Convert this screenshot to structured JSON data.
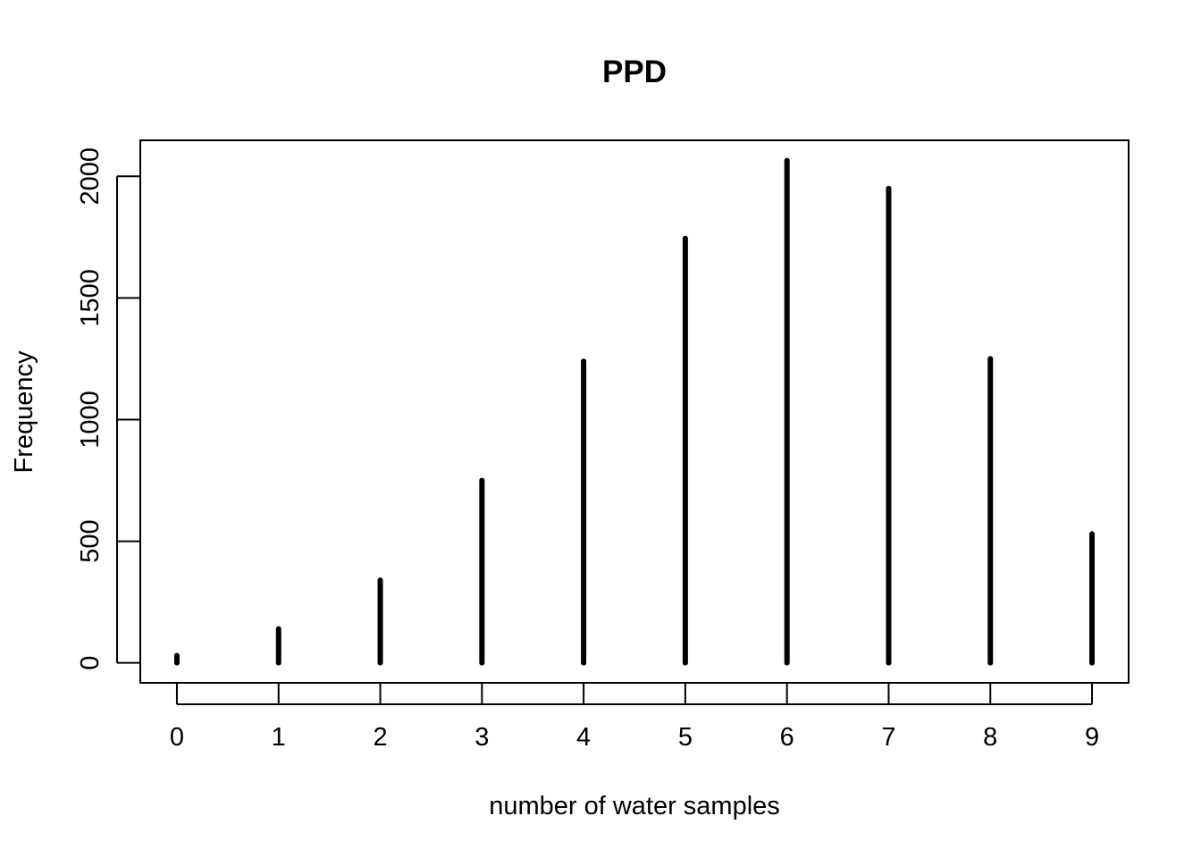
{
  "chart_data": {
    "type": "bar",
    "style": "histogram-spikes",
    "title": "PPD",
    "xlabel": "number of water samples",
    "ylabel": "Frequency",
    "categories": [
      "0",
      "1",
      "2",
      "3",
      "4",
      "5",
      "6",
      "7",
      "8",
      "9"
    ],
    "x": [
      0,
      1,
      2,
      3,
      4,
      5,
      6,
      7,
      8,
      9
    ],
    "values": [
      30,
      140,
      340,
      750,
      1240,
      1745,
      2065,
      1950,
      1250,
      530
    ],
    "xlim": [
      -0.36,
      9.36
    ],
    "ylim": [
      -82,
      2148
    ],
    "x_ticks": [
      0,
      1,
      2,
      3,
      4,
      5,
      6,
      7,
      8,
      9
    ],
    "x_tick_labels": [
      "0",
      "1",
      "2",
      "3",
      "4",
      "5",
      "6",
      "7",
      "8",
      "9"
    ],
    "y_ticks": [
      0,
      500,
      1000,
      1500,
      2000
    ],
    "y_tick_labels": [
      "0",
      "500",
      "1000",
      "1500",
      "2000"
    ],
    "grid": false,
    "legend": "none",
    "bar_color": "#000000"
  }
}
